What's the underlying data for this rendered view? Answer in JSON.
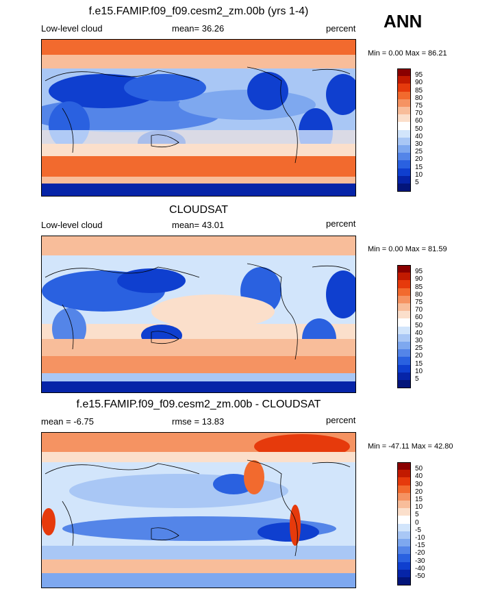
{
  "season": "ANN",
  "panels": [
    {
      "title": "f.e15.FAMIP.f09_f09.cesm2_zm.00b (yrs 1-4)",
      "left": "Low-level cloud",
      "center": "mean=  36.26",
      "right": "percent",
      "minmax": "Min =   0.00 Max =  86.21",
      "levels": [
        "95",
        "90",
        "85",
        "80",
        "75",
        "70",
        "60",
        "50",
        "40",
        "30",
        "25",
        "20",
        "15",
        "10",
        "5"
      ],
      "colors": [
        "#8a0000",
        "#c21a00",
        "#e63a0c",
        "#f26a2e",
        "#f59362",
        "#f8bd9a",
        "#fbdfcb",
        "#ffffff",
        "#d2e5fb",
        "#a9c7f5",
        "#7ea8ef",
        "#5485e8",
        "#2a61e0",
        "#0f3fcf",
        "#0624a8",
        "#03157a"
      ]
    },
    {
      "title": "CLOUDSAT",
      "left": "Low-level cloud",
      "center": "mean=  43.01",
      "right": "percent",
      "minmax": "Min =   0.00 Max =  81.59",
      "levels": [
        "95",
        "90",
        "85",
        "80",
        "75",
        "70",
        "60",
        "50",
        "40",
        "30",
        "25",
        "20",
        "15",
        "10",
        "5"
      ],
      "colors": [
        "#8a0000",
        "#c21a00",
        "#e63a0c",
        "#f26a2e",
        "#f59362",
        "#f8bd9a",
        "#fbdfcb",
        "#ffffff",
        "#d2e5fb",
        "#a9c7f5",
        "#7ea8ef",
        "#5485e8",
        "#2a61e0",
        "#0f3fcf",
        "#0624a8",
        "#03157a"
      ]
    },
    {
      "title": "f.e15.FAMIP.f09_f09.cesm2_zm.00b - CLOUDSAT",
      "left": "mean =  -6.75",
      "center": "rmse =  13.83",
      "right": "percent",
      "minmax": "Min = -47.11 Max =  42.80",
      "levels": [
        "50",
        "40",
        "30",
        "20",
        "15",
        "10",
        "5",
        "0",
        "-5",
        "-10",
        "-15",
        "-20",
        "-30",
        "-40",
        "-50"
      ],
      "colors": [
        "#8a0000",
        "#c21a00",
        "#e63a0c",
        "#f26a2e",
        "#f59362",
        "#f8bd9a",
        "#fbdfcb",
        "#ffffff",
        "#d2e5fb",
        "#a9c7f5",
        "#7ea8ef",
        "#5485e8",
        "#2a61e0",
        "#0f3fcf",
        "#0624a8",
        "#03157a"
      ]
    }
  ]
}
